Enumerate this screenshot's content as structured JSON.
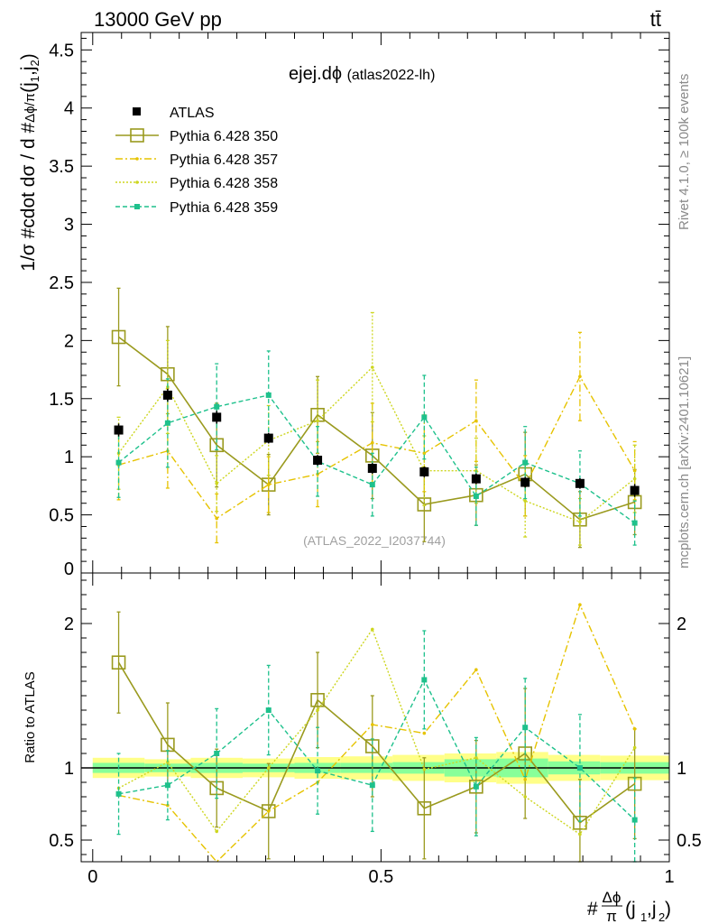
{
  "header": {
    "left": "13000 GeV pp",
    "right": "tt̄"
  },
  "side": {
    "rivet": "Rivet 4.1.0, ≥ 100k events",
    "mcplots": "mcplots.cern.ch [arXiv:2401.10621]"
  },
  "axes": {
    "main_ylabel": "1/σ #cdot dσ / d #(Δϕ/π)(j1,j2)",
    "ratio_ylabel": "Ratio to ATLAS",
    "xlabel": "#(Δϕ/π)(j1,j2)"
  },
  "title": {
    "main": "ejej.dϕ",
    "sub": "(atlas2022-lh)"
  },
  "watermark": "(ATLAS_2022_I2037744)",
  "legend": [
    {
      "label": "ATLAS"
    },
    {
      "label": "Pythia 6.428 350"
    },
    {
      "label": "Pythia 6.428 357"
    },
    {
      "label": "Pythia 6.428 358"
    },
    {
      "label": "Pythia 6.428 359"
    }
  ],
  "colors": {
    "data": "#000000",
    "s350": "#9a9a1e",
    "s357": "#e6c300",
    "s358": "#cdd61f",
    "s359": "#1ec18c",
    "band_yellow": "#ffff88",
    "band_green": "#88ff99"
  },
  "chart_data": {
    "type": "scatter",
    "title": "ejej.dϕ (atlas2022-lh)",
    "x": [
      0.045,
      0.13,
      0.215,
      0.305,
      0.39,
      0.485,
      0.575,
      0.665,
      0.75,
      0.845,
      0.94
    ],
    "xlim": [
      -0.02,
      1.0
    ],
    "xticks": [
      {
        "v": 0,
        "label": "0"
      },
      {
        "v": 0.5,
        "label": "0.5"
      },
      {
        "v": 1,
        "label": "1"
      }
    ],
    "main": {
      "ylim": [
        0,
        4.65
      ],
      "yticks": [
        {
          "v": 0,
          "label": "0"
        },
        {
          "v": 0.5,
          "label": "0.5"
        },
        {
          "v": 1,
          "label": "1"
        },
        {
          "v": 1.5,
          "label": "1.5"
        },
        {
          "v": 2,
          "label": "2"
        },
        {
          "v": 2.5,
          "label": "2.5"
        },
        {
          "v": 3,
          "label": "3"
        },
        {
          "v": 3.5,
          "label": "3.5"
        },
        {
          "v": 4,
          "label": "4"
        },
        {
          "v": 4.5,
          "label": "4.5"
        }
      ],
      "data": {
        "name": "ATLAS",
        "values": [
          1.23,
          1.53,
          1.34,
          1.16,
          0.97,
          0.9,
          0.87,
          0.81,
          0.78,
          0.77,
          0.71
        ],
        "err": [
          0.04,
          0.04,
          0.04,
          0.03,
          0.03,
          0.03,
          0.03,
          0.03,
          0.03,
          0.03,
          0.04
        ]
      },
      "series": [
        {
          "name": "Pythia 6.428 350",
          "key": "s350",
          "values": [
            2.03,
            1.71,
            1.1,
            0.76,
            1.36,
            1.01,
            0.59,
            0.67,
            0.85,
            0.46,
            0.61
          ],
          "err": [
            0.42,
            0.41,
            0.36,
            0.26,
            0.33,
            0.37,
            0.32,
            0.26,
            0.36,
            0.24,
            0.28
          ]
        },
        {
          "name": "Pythia 6.428 357",
          "key": "s357",
          "values": [
            0.93,
            1.05,
            0.47,
            0.76,
            0.85,
            1.12,
            1.03,
            1.31,
            0.75,
            1.69,
            0.88
          ],
          "err": [
            0.3,
            0.32,
            0.21,
            0.24,
            0.28,
            0.34,
            0.33,
            0.35,
            0.26,
            0.38,
            0.25
          ]
        },
        {
          "name": "Pythia 6.428 358",
          "key": "s358",
          "values": [
            1.03,
            1.6,
            0.77,
            1.14,
            1.31,
            1.77,
            0.88,
            0.88,
            0.62,
            0.44,
            0.81
          ],
          "err": [
            0.31,
            0.4,
            0.24,
            0.3,
            0.35,
            0.47,
            0.3,
            0.28,
            0.31,
            0.2,
            0.29
          ]
        },
        {
          "name": "Pythia 6.428 359",
          "key": "s359",
          "values": [
            0.95,
            1.29,
            1.43,
            1.53,
            0.96,
            0.76,
            1.34,
            0.66,
            0.95,
            0.77,
            0.43
          ],
          "err": [
            0.3,
            0.38,
            0.37,
            0.38,
            0.3,
            0.27,
            0.36,
            0.25,
            0.31,
            0.28,
            0.19
          ]
        }
      ]
    },
    "ratio": {
      "ylim": [
        0.35,
        2.35
      ],
      "yticks": [
        {
          "v": 0.5,
          "label": "0.5"
        },
        {
          "v": 1,
          "label": "1"
        },
        {
          "v": 2,
          "label": "2"
        }
      ],
      "band_edges": [
        0.0,
        0.09,
        0.17,
        0.26,
        0.35,
        0.43,
        0.52,
        0.61,
        0.7,
        0.79,
        0.88,
        1.0
      ],
      "band_inner": [
        0.035,
        0.03,
        0.035,
        0.03,
        0.035,
        0.035,
        0.04,
        0.06,
        0.065,
        0.045,
        0.04
      ],
      "band_outer": [
        0.07,
        0.06,
        0.07,
        0.065,
        0.075,
        0.08,
        0.09,
        0.1,
        0.11,
        0.09,
        0.085
      ],
      "series": [
        {
          "name": "Pythia 6.428 350",
          "key": "s350",
          "values": [
            1.73,
            1.16,
            0.86,
            0.7,
            1.47,
            1.15,
            0.72,
            0.87,
            1.1,
            0.62,
            0.89
          ],
          "err": [
            0.35,
            0.29,
            0.27,
            0.33,
            0.33,
            0.35,
            0.35,
            0.32,
            0.45,
            0.3,
            0.38
          ]
        },
        {
          "name": "Pythia 6.428 357",
          "key": "s357",
          "values": [
            0.81,
            0.74,
            0.3,
            0.7,
            0.9,
            1.3,
            1.24,
            1.68,
            0.92,
            2.13,
            1.27
          ]
        },
        {
          "name": "Pythia 6.428 358",
          "key": "s358",
          "values": [
            0.86,
            1.04,
            0.56,
            1.0,
            1.4,
            1.96,
            0.99,
            1.07,
            0.8,
            0.54,
            1.14
          ]
        },
        {
          "name": "Pythia 6.428 359",
          "key": "s359",
          "values": [
            0.82,
            0.88,
            1.1,
            1.4,
            0.98,
            0.88,
            1.61,
            0.87,
            1.28,
            1.0,
            0.64
          ],
          "err": [
            0.28,
            0.24,
            0.31,
            0.31,
            0.3,
            0.32,
            0.34,
            0.34,
            0.34,
            0.37,
            0.29
          ]
        }
      ]
    }
  }
}
